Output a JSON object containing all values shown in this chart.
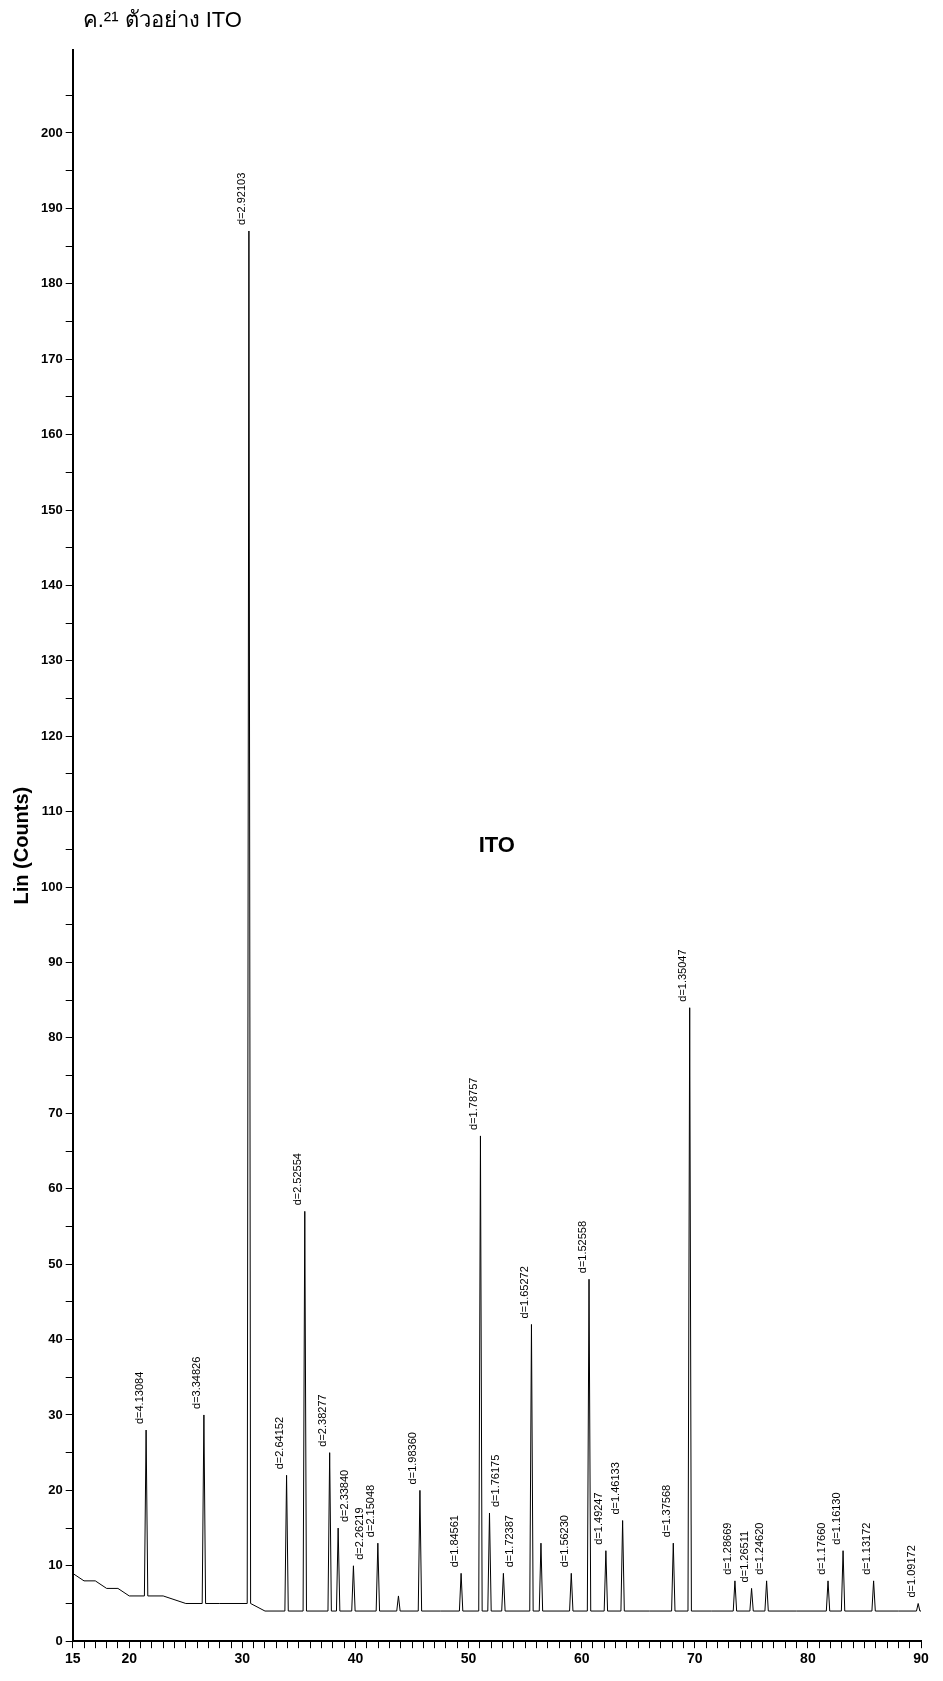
{
  "chart_data": {
    "type": "line",
    "title": "ITO",
    "ylabel": "Lin (Counts)",
    "color": "#000000",
    "marker": "none",
    "annotations": [
      "ค.²¹ ตัวอย่าง ITO",
      {
        "text": "d=4.13084",
        "x": 21.49,
        "y": 28
      },
      {
        "text": "d=3.34826",
        "x": 26.6,
        "y": 30
      },
      {
        "text": "d=2.92103",
        "x": 30.58,
        "y": 187
      },
      {
        "text": "d=2.64152",
        "x": 33.91,
        "y": 22
      },
      {
        "text": "d=2.52554",
        "x": 35.52,
        "y": 57
      },
      {
        "text": "d=2.38277",
        "x": 37.72,
        "y": 25
      },
      {
        "text": "d=2.33840",
        "x": 38.47,
        "y": 15
      },
      {
        "text": "d=2.26219",
        "x": 39.82,
        "y": 10
      },
      {
        "text": "d=2.15048",
        "x": 41.98,
        "y": 13
      },
      {
        "text": "d=1.98360",
        "x": 45.7,
        "y": 20
      },
      {
        "text": "d=1.84561",
        "x": 49.34,
        "y": 9
      },
      {
        "text": "d=1.78757",
        "x": 51.05,
        "y": 67
      },
      {
        "text": "d=1.76175",
        "x": 51.85,
        "y": 17
      },
      {
        "text": "d=1.72387",
        "x": 53.08,
        "y": 9
      },
      {
        "text": "d=1.65272",
        "x": 55.56,
        "y": 42
      },
      {
        "text": "d=1.56230",
        "x": 59.08,
        "y": 9
      },
      {
        "text": "d=1.52558",
        "x": 60.65,
        "y": 48
      },
      {
        "text": "d=1.49247",
        "x": 62.14,
        "y": 12
      },
      {
        "text": "d=1.46133",
        "x": 63.62,
        "y": 16
      },
      {
        "text": "d=1.37568",
        "x": 68.1,
        "y": 13
      },
      {
        "text": "d=1.35047",
        "x": 69.55,
        "y": 84
      },
      {
        "text": "d=1.28669",
        "x": 73.55,
        "y": 8
      },
      {
        "text": "d=1.26511",
        "x": 75.02,
        "y": 7
      },
      {
        "text": "d=1.24620",
        "x": 76.35,
        "y": 8
      },
      {
        "text": "d=1.17660",
        "x": 81.78,
        "y": 8
      },
      {
        "text": "d=1.16130",
        "x": 83.11,
        "y": 12
      },
      {
        "text": "d=1.13172",
        "x": 85.81,
        "y": 8
      },
      {
        "text": "d=1.09172",
        "x": 89.75,
        "y": 5
      }
    ],
    "x": [
      15,
      16,
      17,
      18,
      19,
      20,
      21.34,
      21.49,
      21.64,
      23,
      25,
      26.45,
      26.6,
      26.75,
      28,
      30.43,
      30.58,
      30.73,
      32,
      33.76,
      33.91,
      34.06,
      35.37,
      35.52,
      35.67,
      37.57,
      37.72,
      37.87,
      38.32,
      38.47,
      38.62,
      39.67,
      39.82,
      39.97,
      41.83,
      41.98,
      42.13,
      43.65,
      43.8,
      43.95,
      45.55,
      45.7,
      45.85,
      47.5,
      49.19,
      49.34,
      49.49,
      50.9,
      51.05,
      51.2,
      51.7,
      51.85,
      52,
      52.93,
      53.08,
      53.23,
      55.41,
      55.56,
      55.71,
      56.25,
      56.4,
      56.55,
      58.93,
      59.08,
      59.23,
      60.5,
      60.65,
      60.8,
      61.99,
      62.14,
      62.29,
      63.47,
      63.62,
      63.77,
      66,
      67.95,
      68.1,
      68.25,
      69.4,
      69.55,
      69.7,
      71.5,
      73.4,
      73.55,
      73.7,
      74.87,
      75.02,
      75.17,
      76.2,
      76.35,
      76.5,
      79,
      81.63,
      81.78,
      81.93,
      82.96,
      83.11,
      83.26,
      85.66,
      85.81,
      85.96,
      88,
      89.6,
      89.75,
      89.9,
      90
    ],
    "values": [
      9,
      8,
      8,
      7,
      7,
      6,
      6,
      28,
      6,
      6,
      5,
      5,
      30,
      5,
      5,
      5,
      187,
      5,
      4,
      4,
      22,
      4,
      4,
      57,
      4,
      4,
      25,
      4,
      4,
      15,
      4,
      4,
      10,
      4,
      4,
      13,
      4,
      4,
      6,
      4,
      4,
      20,
      4,
      4,
      4,
      9,
      4,
      4,
      67,
      4,
      4,
      17,
      4,
      4,
      9,
      4,
      4,
      42,
      4,
      4,
      13,
      4,
      4,
      9,
      4,
      4,
      48,
      4,
      4,
      12,
      4,
      4,
      16,
      4,
      4,
      4,
      13,
      4,
      4,
      84,
      4,
      4,
      4,
      8,
      4,
      4,
      7,
      4,
      4,
      8,
      4,
      4,
      4,
      8,
      4,
      4,
      12,
      4,
      4,
      8,
      4,
      4,
      4,
      5,
      4,
      4
    ],
    "xlim": [
      15,
      90
    ],
    "xticks": [
      15,
      {
        "value": 16,
        "label": null
      },
      {
        "value": 17,
        "label": null
      },
      {
        "value": 18,
        "label": null
      },
      {
        "value": 19,
        "label": null
      },
      20,
      {
        "value": 21,
        "label": null
      },
      {
        "value": 22,
        "label": null
      },
      {
        "value": 23,
        "label": null
      },
      {
        "value": 24,
        "label": null
      },
      {
        "value": 25,
        "label": null
      },
      {
        "value": 26,
        "label": null
      },
      {
        "value": 27,
        "label": null
      },
      {
        "value": 28,
        "label": null
      },
      {
        "value": 29,
        "label": null
      },
      30,
      {
        "value": 31,
        "label": null
      },
      {
        "value": 32,
        "label": null
      },
      {
        "value": 33,
        "label": null
      },
      {
        "value": 34,
        "label": null
      },
      {
        "value": 35,
        "label": null
      },
      {
        "value": 36,
        "label": null
      },
      {
        "value": 37,
        "label": null
      },
      {
        "value": 38,
        "label": null
      },
      {
        "value": 39,
        "label": null
      },
      40,
      {
        "value": 41,
        "label": null
      },
      {
        "value": 42,
        "label": null
      },
      {
        "value": 43,
        "label": null
      },
      {
        "value": 44,
        "label": null
      },
      {
        "value": 45,
        "label": null
      },
      {
        "value": 46,
        "label": null
      },
      {
        "value": 47,
        "label": null
      },
      {
        "value": 48,
        "label": null
      },
      {
        "value": 49,
        "label": null
      },
      50,
      {
        "value": 51,
        "label": null
      },
      {
        "value": 52,
        "label": null
      },
      {
        "value": 53,
        "label": null
      },
      {
        "value": 54,
        "label": null
      },
      {
        "value": 55,
        "label": null
      },
      {
        "value": 56,
        "label": null
      },
      {
        "value": 57,
        "label": null
      },
      {
        "value": 58,
        "label": null
      },
      {
        "value": 59,
        "label": null
      },
      60,
      {
        "value": 61,
        "label": null
      },
      {
        "value": 62,
        "label": null
      },
      {
        "value": 63,
        "label": null
      },
      {
        "value": 64,
        "label": null
      },
      {
        "value": 65,
        "label": null
      },
      {
        "value": 66,
        "label": null
      },
      {
        "value": 67,
        "label": null
      },
      {
        "value": 68,
        "label": null
      },
      {
        "value": 69,
        "label": null
      },
      70,
      {
        "value": 71,
        "label": null
      },
      {
        "value": 72,
        "label": null
      },
      {
        "value": 73,
        "label": null
      },
      {
        "value": 74,
        "label": null
      },
      {
        "value": 75,
        "label": null
      },
      {
        "value": 76,
        "label": null
      },
      {
        "value": 77,
        "label": null
      },
      {
        "value": 78,
        "label": null
      },
      {
        "value": 79,
        "label": null
      },
      80,
      {
        "value": 81,
        "label": null
      },
      {
        "value": 82,
        "label": null
      },
      {
        "value": 83,
        "label": null
      },
      {
        "value": 84,
        "label": null
      },
      {
        "value": 85,
        "label": null
      },
      {
        "value": 86,
        "label": null
      },
      {
        "value": 87,
        "label": null
      },
      {
        "value": 88,
        "label": null
      },
      {
        "value": 89,
        "label": null
      },
      90
    ],
    "ylim": [
      0,
      211
    ],
    "yticks": [
      0,
      {
        "value": 5,
        "label": null
      },
      10,
      {
        "value": 15,
        "label": null
      },
      20,
      {
        "value": 25,
        "label": null
      },
      30,
      {
        "value": 35,
        "label": null
      },
      40,
      {
        "value": 45,
        "label": null
      },
      50,
      {
        "value": 55,
        "label": null
      },
      60,
      {
        "value": 65,
        "label": null
      },
      70,
      {
        "value": 75,
        "label": null
      },
      80,
      {
        "value": 85,
        "label": null
      },
      90,
      {
        "value": 95,
        "label": null
      },
      100,
      {
        "value": 105,
        "label": null
      },
      110,
      {
        "value": 115,
        "label": null
      },
      120,
      {
        "value": 125,
        "label": null
      },
      130,
      {
        "value": 135,
        "label": null
      },
      140,
      {
        "value": 145,
        "label": null
      },
      150,
      {
        "value": 155,
        "label": null
      },
      160,
      {
        "value": 165,
        "label": null
      },
      170,
      {
        "value": 175,
        "label": null
      },
      180,
      {
        "value": 185,
        "label": null
      },
      190,
      {
        "value": 195,
        "label": null
      },
      200,
      {
        "value": 205,
        "label": null
      }
    ]
  }
}
